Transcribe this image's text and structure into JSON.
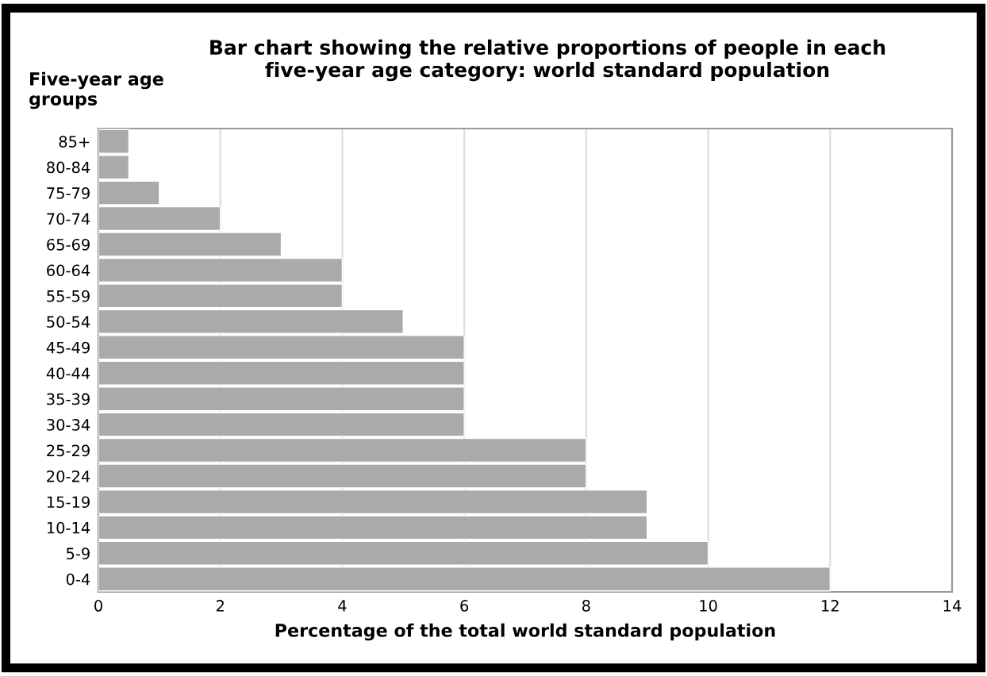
{
  "chart_data": {
    "type": "bar",
    "orientation": "horizontal",
    "title": "Bar chart showing the relative proportions of people in each\nfive-year age category: world standard population",
    "ylabel": "Five-year age\ngroups",
    "xlabel": "Percentage of the total world standard population",
    "categories": [
      "85+",
      "80-84",
      "75-79",
      "70-74",
      "65-69",
      "60-64",
      "55-59",
      "50-54",
      "45-49",
      "40-44",
      "35-39",
      "30-34",
      "25-29",
      "20-24",
      "15-19",
      "10-14",
      "5-9",
      "0-4"
    ],
    "values": [
      0.5,
      0.5,
      1,
      2,
      3,
      4,
      4,
      5,
      6,
      6,
      6,
      6,
      8,
      8,
      9,
      9,
      10,
      12
    ],
    "color": "#aaaaaa",
    "xlim": [
      0,
      14
    ],
    "xticks": [
      0,
      2,
      4,
      6,
      8,
      10,
      12,
      14
    ],
    "grid": "x",
    "legend": false
  }
}
